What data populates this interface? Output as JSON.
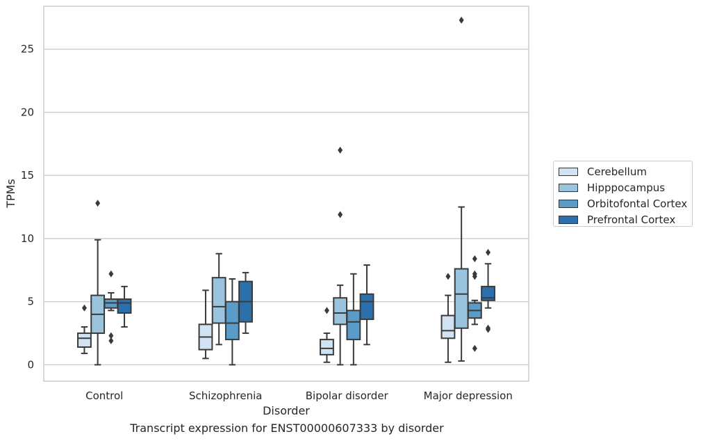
{
  "chart_data": {
    "type": "box",
    "xlabel": "Disorder",
    "ylabel": "TPMs",
    "caption": "Transcript expression for ENST00000607333 by disorder",
    "ylim": [
      -1.3,
      28.4
    ],
    "yticks": [
      0,
      5,
      10,
      15,
      20,
      25
    ],
    "grid": "horizontal",
    "legend_position": "right",
    "categories": [
      "Control",
      "Schizophrenia",
      "Bipolar disorder",
      "Major depression"
    ],
    "series": [
      {
        "name": "Cerebellum",
        "color": "#d1e2f2",
        "boxes": [
          {
            "whislo": 0.9,
            "q1": 1.4,
            "med": 2.1,
            "q3": 2.5,
            "whishi": 3.0,
            "fliers": [
              4.5
            ]
          },
          {
            "whislo": 0.5,
            "q1": 1.2,
            "med": 2.2,
            "q3": 3.2,
            "whishi": 5.9,
            "fliers": []
          },
          {
            "whislo": 0.2,
            "q1": 0.8,
            "med": 1.3,
            "q3": 2.0,
            "whishi": 2.5,
            "fliers": [
              4.3
            ]
          },
          {
            "whislo": 0.2,
            "q1": 2.1,
            "med": 2.7,
            "q3": 3.9,
            "whishi": 5.5,
            "fliers": [
              7.0
            ]
          }
        ]
      },
      {
        "name": "Hipppocampus",
        "color": "#9ac3de",
        "boxes": [
          {
            "whislo": 0.0,
            "q1": 2.5,
            "med": 4.0,
            "q3": 5.5,
            "whishi": 9.9,
            "fliers": [
              12.8
            ]
          },
          {
            "whislo": 1.6,
            "q1": 3.3,
            "med": 4.6,
            "q3": 6.9,
            "whishi": 8.8,
            "fliers": []
          },
          {
            "whislo": 0.0,
            "q1": 3.2,
            "med": 4.1,
            "q3": 5.3,
            "whishi": 6.3,
            "fliers": [
              11.9,
              17.0
            ]
          },
          {
            "whislo": 0.3,
            "q1": 2.9,
            "med": 5.6,
            "q3": 7.6,
            "whishi": 12.5,
            "fliers": [
              27.3
            ]
          }
        ]
      },
      {
        "name": "Orbitofontal Cortex",
        "color": "#5a9bc7",
        "boxes": [
          {
            "whislo": 4.3,
            "q1": 4.5,
            "med": 4.9,
            "q3": 5.2,
            "whishi": 5.7,
            "fliers": [
              1.9,
              2.3,
              7.2
            ]
          },
          {
            "whislo": 0.0,
            "q1": 2.0,
            "med": 3.3,
            "q3": 5.0,
            "whishi": 6.8,
            "fliers": []
          },
          {
            "whislo": 0.0,
            "q1": 2.0,
            "med": 3.4,
            "q3": 4.3,
            "whishi": 7.2,
            "fliers": []
          },
          {
            "whislo": 3.2,
            "q1": 3.7,
            "med": 4.3,
            "q3": 4.9,
            "whishi": 5.1,
            "fliers": [
              1.3,
              7.0,
              7.2,
              8.4
            ]
          }
        ]
      },
      {
        "name": "Prefrontal Cortex",
        "color": "#2c6fad",
        "boxes": [
          {
            "whislo": 3.0,
            "q1": 4.1,
            "med": 4.9,
            "q3": 5.2,
            "whishi": 6.2,
            "fliers": []
          },
          {
            "whislo": 2.5,
            "q1": 3.4,
            "med": 5.0,
            "q3": 6.6,
            "whishi": 7.3,
            "fliers": []
          },
          {
            "whislo": 1.6,
            "q1": 3.6,
            "med": 5.0,
            "q3": 5.6,
            "whishi": 7.9,
            "fliers": []
          },
          {
            "whislo": 4.5,
            "q1": 5.1,
            "med": 5.3,
            "q3": 6.2,
            "whishi": 8.0,
            "fliers": [
              2.8,
              2.9,
              8.9
            ]
          }
        ]
      }
    ]
  }
}
